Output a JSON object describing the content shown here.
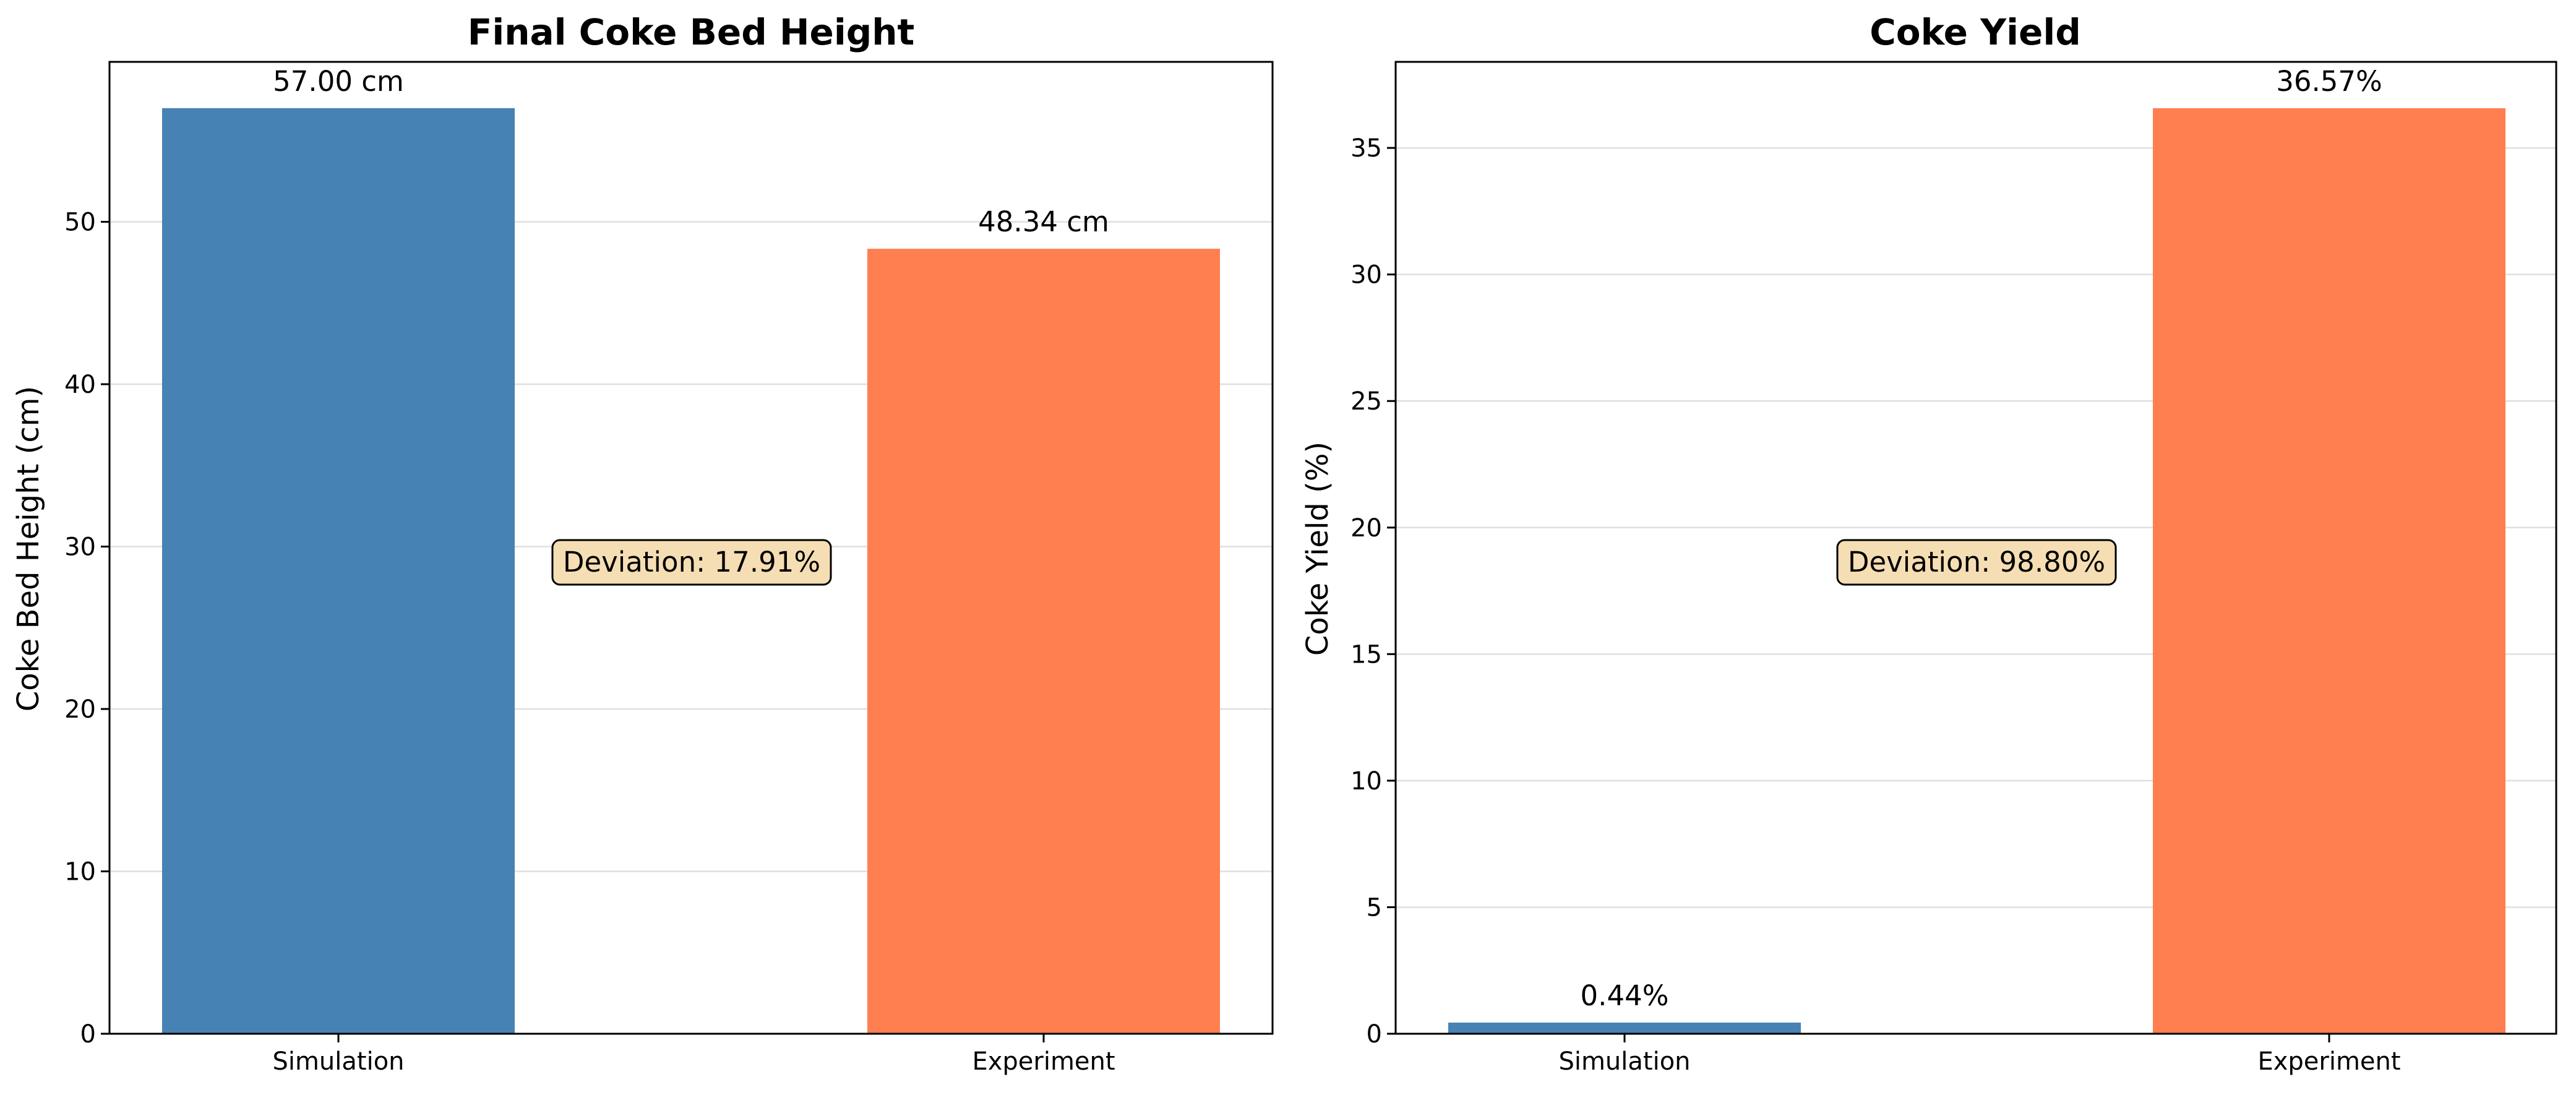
{
  "colors": {
    "simulation": "#4682b4",
    "experiment": "#ff7f50",
    "annotation_fill": "#f5deb3",
    "annotation_edge": "#000000"
  },
  "chart_data": [
    {
      "type": "bar",
      "title": "Final Coke Bed Height",
      "xlabel": "",
      "ylabel": "Coke Bed Height (cm)",
      "categories": [
        "Simulation",
        "Experiment"
      ],
      "values": [
        57.0,
        48.34
      ],
      "data_labels": [
        "57.00 cm",
        "48.34 cm"
      ],
      "bar_colors": [
        "#4682b4",
        "#ff7f50"
      ],
      "ylim": [
        0,
        59.85
      ],
      "yticks": [
        0,
        10,
        20,
        30,
        40,
        50
      ],
      "ytick_labels": [
        "0",
        "10",
        "20",
        "30",
        "40",
        "50"
      ],
      "grid": "y",
      "legend": "none",
      "annotation": "Deviation: 17.91%"
    },
    {
      "type": "bar",
      "title": "Coke Yield",
      "xlabel": "",
      "ylabel": "Coke Yield (%)",
      "categories": [
        "Simulation",
        "Experiment"
      ],
      "values": [
        0.44,
        36.57
      ],
      "data_labels": [
        "0.44%",
        "36.57%"
      ],
      "bar_colors": [
        "#4682b4",
        "#ff7f50"
      ],
      "ylim": [
        0,
        38.4
      ],
      "yticks": [
        0,
        5,
        10,
        15,
        20,
        25,
        30,
        35
      ],
      "ytick_labels": [
        "0",
        "5",
        "10",
        "15",
        "20",
        "25",
        "30",
        "35"
      ],
      "grid": "y",
      "legend": "none",
      "annotation": "Deviation: 98.80%"
    }
  ]
}
